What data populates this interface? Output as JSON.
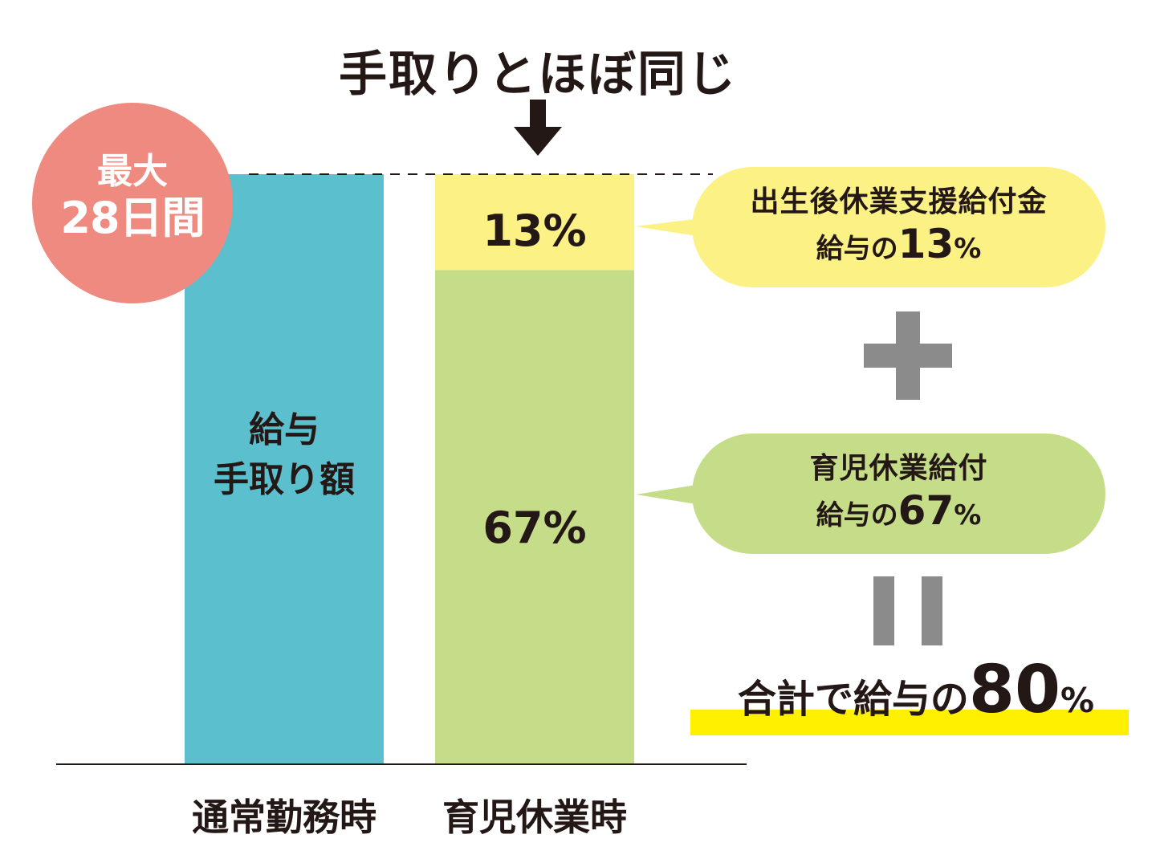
{
  "title_note": "手取りとほぼ同じ",
  "badge": {
    "line1": "最大",
    "line2": "28日間"
  },
  "bar_label": {
    "line1": "給与",
    "line2": "手取り額"
  },
  "chart_data": {
    "type": "bar",
    "stacked": true,
    "categories": [
      "通常勤務時",
      "育児休業時"
    ],
    "ylim": [
      0,
      80
    ],
    "bars": [
      {
        "category": "通常勤務時",
        "segments": [
          {
            "label": "",
            "value": 80,
            "color": "#5bbfcd"
          }
        ]
      },
      {
        "category": "育児休業時",
        "segments": [
          {
            "label": "67%",
            "value": 67,
            "color": "#c5dd88"
          },
          {
            "label": "13%",
            "value": 13,
            "color": "#fbf184"
          }
        ]
      }
    ],
    "reference_line": {
      "style": "dashed",
      "value": 80
    }
  },
  "callouts": [
    {
      "line1": "出生後休業支援給付金",
      "prefix": "給与の",
      "number": "13",
      "suffix": "%",
      "color": "#fbf184"
    },
    {
      "line1": "育児休業給付",
      "prefix": "給与の",
      "number": "67",
      "suffix": "%",
      "color": "#c5dd88"
    }
  ],
  "operators": {
    "plus": "+",
    "equals": "="
  },
  "total": {
    "prefix": "合計で給与の",
    "number": "80",
    "suffix": "%"
  },
  "colors": {
    "teal": "#5bbfcd",
    "green": "#c5dd88",
    "yellow": "#fbf184",
    "badge": "#ef8a80",
    "highlight": "#fff000",
    "operator_gray": "#8b8b8b",
    "text": "#231815"
  }
}
